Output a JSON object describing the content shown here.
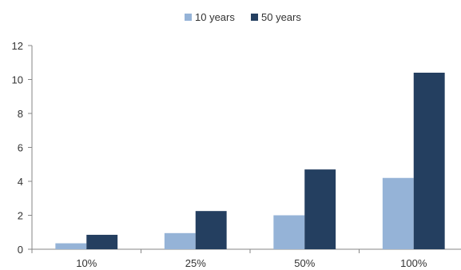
{
  "chart_data": {
    "type": "bar",
    "categories": [
      "10%",
      "25%",
      "50%",
      "100%"
    ],
    "series": [
      {
        "name": "10 years",
        "values": [
          0.35,
          0.95,
          2.0,
          4.2
        ],
        "color": "#95b3d7"
      },
      {
        "name": "50 years",
        "values": [
          0.85,
          2.25,
          4.7,
          10.4
        ],
        "color": "#243f60"
      }
    ],
    "ylim": [
      0,
      12
    ],
    "yticks": [
      "0",
      "2",
      "4",
      "6",
      "8",
      "10",
      "12"
    ],
    "grid": false,
    "legend_position": "top-center",
    "title": "",
    "xlabel": "",
    "ylabel": ""
  }
}
